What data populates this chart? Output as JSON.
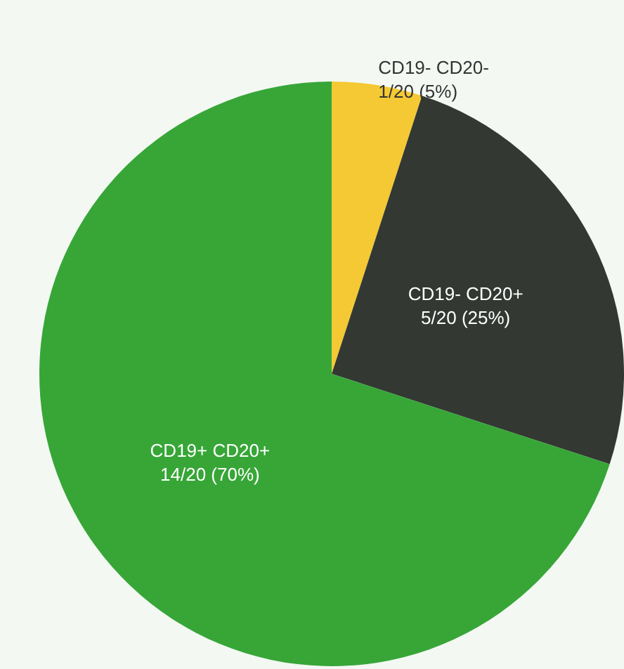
{
  "chart_data": {
    "type": "pie",
    "categories": [
      "CD19- CD20-",
      "CD19- CD20+",
      "CD19+ CD20+"
    ],
    "values": [
      5,
      25,
      70
    ],
    "value_labels": [
      "1/20 (5%)",
      "5/20 (25%)",
      "14/20 (70%)"
    ],
    "colors": [
      "#f5c933",
      "#333833",
      "#37a637"
    ],
    "legend": false
  }
}
